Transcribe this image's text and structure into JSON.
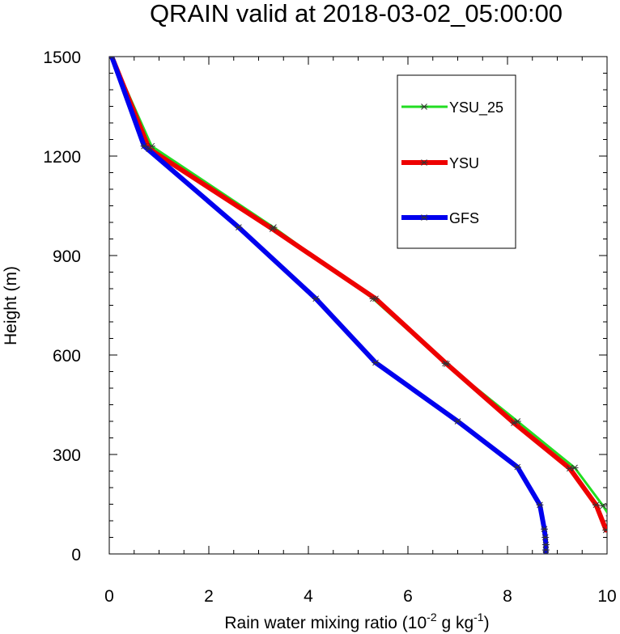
{
  "chart_data": {
    "type": "line",
    "title": "QRAIN valid at 2018-03-02_05:00:00",
    "xlabel_main": "Rain water mixing ratio (10",
    "xlabel_sup1": "-2",
    "xlabel_mid": " g kg",
    "xlabel_sup2": "-1",
    "xlabel_end": ")",
    "ylabel": "Height (m)",
    "xlim": [
      0,
      10
    ],
    "ylim": [
      0,
      1500
    ],
    "xticks": [
      "0",
      "2",
      "4",
      "6",
      "8",
      "10"
    ],
    "yticks": [
      "0",
      "300",
      "600",
      "900",
      "1200",
      "1500"
    ],
    "legend_position": "top-right",
    "series": [
      {
        "name": "YSU_25",
        "color": "#22dd22",
        "points": [
          [
            10.05,
            115
          ],
          [
            9.92,
            145
          ],
          [
            9.35,
            260
          ],
          [
            8.2,
            400
          ],
          [
            6.75,
            575
          ],
          [
            5.3,
            770
          ],
          [
            3.3,
            985
          ],
          [
            0.85,
            1230
          ],
          [
            0.05,
            1500
          ]
        ]
      },
      {
        "name": "YSU",
        "color": "#ee0000",
        "points": [
          [
            9.98,
            72
          ],
          [
            9.78,
            148
          ],
          [
            9.25,
            258
          ],
          [
            8.13,
            395
          ],
          [
            6.78,
            573
          ],
          [
            5.35,
            770
          ],
          [
            3.28,
            980
          ],
          [
            0.8,
            1222
          ],
          [
            0.05,
            1500
          ]
        ]
      },
      {
        "name": "GFS",
        "color": "#0000ee",
        "points": [
          [
            8.77,
            0
          ],
          [
            8.77,
            12
          ],
          [
            8.77,
            28
          ],
          [
            8.76,
            50
          ],
          [
            8.74,
            75
          ],
          [
            8.65,
            148
          ],
          [
            8.2,
            262
          ],
          [
            7.0,
            400
          ],
          [
            5.35,
            577
          ],
          [
            4.15,
            770
          ],
          [
            2.6,
            985
          ],
          [
            0.7,
            1230
          ],
          [
            0.05,
            1500
          ]
        ]
      }
    ]
  }
}
